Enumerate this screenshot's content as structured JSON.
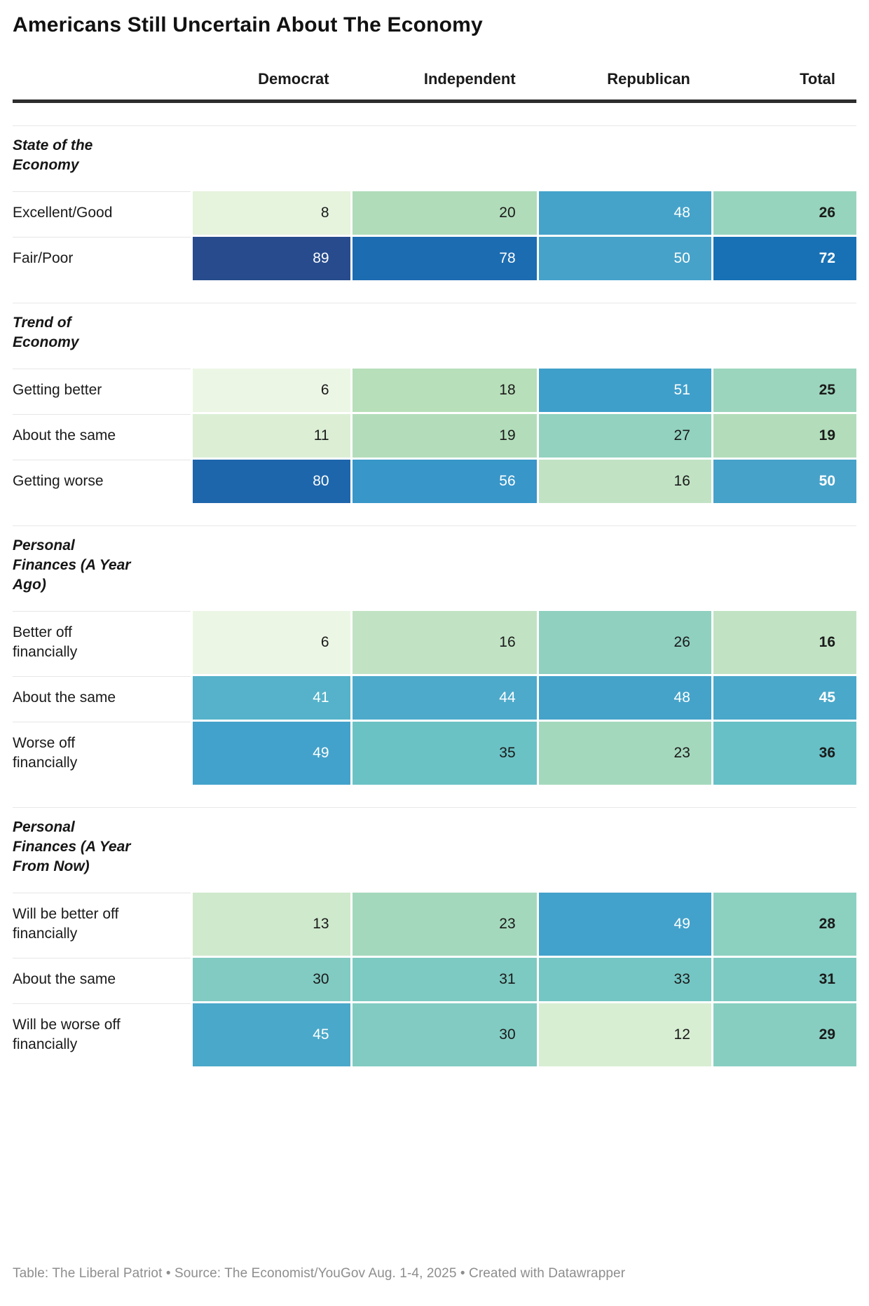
{
  "title": "Americans Still Uncertain About The Economy",
  "columns": {
    "c1": "Democrat",
    "c2": "Independent",
    "c3": "Republican",
    "c4": "Total"
  },
  "footer": "Table: The Liberal Patriot • Source: The Economist/YouGov Aug. 1-4, 2025 • Created with Datawrapper",
  "colors": {
    "header_rule": "#2d2d2d",
    "section_separator": "#e8e8e8",
    "text_dark": "#1a1a1a",
    "text_light": "#ffffff",
    "footer_text": "#8e8e8e",
    "scale_low_green": "#ecf6e5",
    "scale_mid_teal": "#74c6c4",
    "scale_high_blue": "#1871b4",
    "scale_max_navy": "#274b8d"
  },
  "table": {
    "sections": [
      {
        "header": "State of the\nEconomy",
        "rows": [
          {
            "label": "Excellent/Good",
            "cells": [
              {
                "v": 8,
                "bg": "#e6f3dd",
                "fg": "#1a1a1a"
              },
              {
                "v": 20,
                "bg": "#b0dcb9",
                "fg": "#1a1a1a"
              },
              {
                "v": 48,
                "bg": "#45a3ca",
                "fg": "#ffffff"
              },
              {
                "v": 26,
                "bg": "#97d4bd",
                "fg": "#1a1a1a"
              }
            ]
          },
          {
            "label": "Fair/Poor",
            "cells": [
              {
                "v": 89,
                "bg": "#274b8d",
                "fg": "#ffffff"
              },
              {
                "v": 78,
                "bg": "#1c6cb1",
                "fg": "#ffffff"
              },
              {
                "v": 50,
                "bg": "#46a2c9",
                "fg": "#ffffff"
              },
              {
                "v": 72,
                "bg": "#1871b4",
                "fg": "#ffffff"
              }
            ]
          }
        ]
      },
      {
        "header": "Trend of\nEconomy",
        "rows": [
          {
            "label": "Getting better",
            "cells": [
              {
                "v": 6,
                "bg": "#ecf6e5",
                "fg": "#1a1a1a"
              },
              {
                "v": 18,
                "bg": "#b7dfb9",
                "fg": "#1a1a1a"
              },
              {
                "v": 51,
                "bg": "#3f9fcb",
                "fg": "#ffffff"
              },
              {
                "v": 25,
                "bg": "#9cd5bd",
                "fg": "#1a1a1a"
              }
            ]
          },
          {
            "label": "About the same",
            "cells": [
              {
                "v": 11,
                "bg": "#dcefd5",
                "fg": "#1a1a1a"
              },
              {
                "v": 19,
                "bg": "#b3ddba",
                "fg": "#1a1a1a"
              },
              {
                "v": 27,
                "bg": "#92d2bf",
                "fg": "#1a1a1a"
              },
              {
                "v": 19,
                "bg": "#b3ddba",
                "fg": "#1a1a1a"
              }
            ]
          },
          {
            "label": "Getting worse",
            "cells": [
              {
                "v": 80,
                "bg": "#1e66ac",
                "fg": "#ffffff"
              },
              {
                "v": 56,
                "bg": "#3896c9",
                "fg": "#ffffff"
              },
              {
                "v": 16,
                "bg": "#c1e3c4",
                "fg": "#1a1a1a"
              },
              {
                "v": 50,
                "bg": "#46a2c9",
                "fg": "#ffffff"
              }
            ]
          }
        ]
      },
      {
        "header": "Personal\nFinances (A Year\nAgo)",
        "rows": [
          {
            "label": "Better off\nfinancially",
            "cells": [
              {
                "v": 6,
                "bg": "#ecf6e5",
                "fg": "#1a1a1a"
              },
              {
                "v": 16,
                "bg": "#c1e3c4",
                "fg": "#1a1a1a"
              },
              {
                "v": 26,
                "bg": "#8fd0bf",
                "fg": "#1a1a1a"
              },
              {
                "v": 16,
                "bg": "#c1e3c4",
                "fg": "#1a1a1a"
              }
            ]
          },
          {
            "label": "About the same",
            "cells": [
              {
                "v": 41,
                "bg": "#55b2ca",
                "fg": "#ffffff"
              },
              {
                "v": 44,
                "bg": "#4daacb",
                "fg": "#ffffff"
              },
              {
                "v": 48,
                "bg": "#45a3ca",
                "fg": "#ffffff"
              },
              {
                "v": 45,
                "bg": "#4aa8ca",
                "fg": "#ffffff"
              }
            ]
          },
          {
            "label": "Worse off\nfinancially",
            "cells": [
              {
                "v": 49,
                "bg": "#43a2cb",
                "fg": "#ffffff"
              },
              {
                "v": 35,
                "bg": "#6bc2c5",
                "fg": "#1a1a1a"
              },
              {
                "v": 23,
                "bg": "#a4d8bc",
                "fg": "#1a1a1a"
              },
              {
                "v": 36,
                "bg": "#67c0c6",
                "fg": "#1a1a1a"
              }
            ]
          }
        ]
      },
      {
        "header": "Personal\nFinances (A Year\nFrom Now)",
        "rows": [
          {
            "label": "Will be better off\nfinancially",
            "cells": [
              {
                "v": 13,
                "bg": "#cfe9cc",
                "fg": "#1a1a1a"
              },
              {
                "v": 23,
                "bg": "#a4d8bc",
                "fg": "#1a1a1a"
              },
              {
                "v": 49,
                "bg": "#43a2cb",
                "fg": "#ffffff"
              },
              {
                "v": 28,
                "bg": "#8cd0c0",
                "fg": "#1a1a1a"
              }
            ]
          },
          {
            "label": "About the same",
            "cells": [
              {
                "v": 30,
                "bg": "#81cbc2",
                "fg": "#1a1a1a"
              },
              {
                "v": 31,
                "bg": "#7dcac2",
                "fg": "#1a1a1a"
              },
              {
                "v": 33,
                "bg": "#74c6c4",
                "fg": "#1a1a1a"
              },
              {
                "v": 31,
                "bg": "#7dcac2",
                "fg": "#1a1a1a"
              }
            ]
          },
          {
            "label": "Will be worse off\nfinancially",
            "cells": [
              {
                "v": 45,
                "bg": "#4aa8ca",
                "fg": "#ffffff"
              },
              {
                "v": 30,
                "bg": "#81cbc2",
                "fg": "#1a1a1a"
              },
              {
                "v": 12,
                "bg": "#d8eed3",
                "fg": "#1a1a1a"
              },
              {
                "v": 29,
                "bg": "#87cec1",
                "fg": "#1a1a1a"
              }
            ]
          }
        ]
      }
    ]
  },
  "chart_data": {
    "type": "heatmap",
    "title": "Americans Still Uncertain About The Economy",
    "columns": [
      "Democrat",
      "Independent",
      "Republican",
      "Total"
    ],
    "unit": "percent",
    "color_scale": "sequential green (low) through teal to blue/navy (high)",
    "legend_position": "none",
    "sections": [
      {
        "section": "State of the Economy",
        "rows": [
          {
            "label": "Excellent/Good",
            "values": [
              8,
              20,
              48,
              26
            ]
          },
          {
            "label": "Fair/Poor",
            "values": [
              89,
              78,
              50,
              72
            ]
          }
        ]
      },
      {
        "section": "Trend of Economy",
        "rows": [
          {
            "label": "Getting better",
            "values": [
              6,
              18,
              51,
              25
            ]
          },
          {
            "label": "About the same",
            "values": [
              11,
              19,
              27,
              19
            ]
          },
          {
            "label": "Getting worse",
            "values": [
              80,
              56,
              16,
              50
            ]
          }
        ]
      },
      {
        "section": "Personal Finances (A Year Ago)",
        "rows": [
          {
            "label": "Better off financially",
            "values": [
              6,
              16,
              26,
              16
            ]
          },
          {
            "label": "About the same",
            "values": [
              41,
              44,
              48,
              45
            ]
          },
          {
            "label": "Worse off financially",
            "values": [
              49,
              35,
              23,
              36
            ]
          }
        ]
      },
      {
        "section": "Personal Finances (A Year From Now)",
        "rows": [
          {
            "label": "Will be better off financially",
            "values": [
              13,
              23,
              49,
              28
            ]
          },
          {
            "label": "About the same",
            "values": [
              30,
              31,
              33,
              31
            ]
          },
          {
            "label": "Will be worse off financially",
            "values": [
              45,
              30,
              12,
              29
            ]
          }
        ]
      }
    ]
  }
}
